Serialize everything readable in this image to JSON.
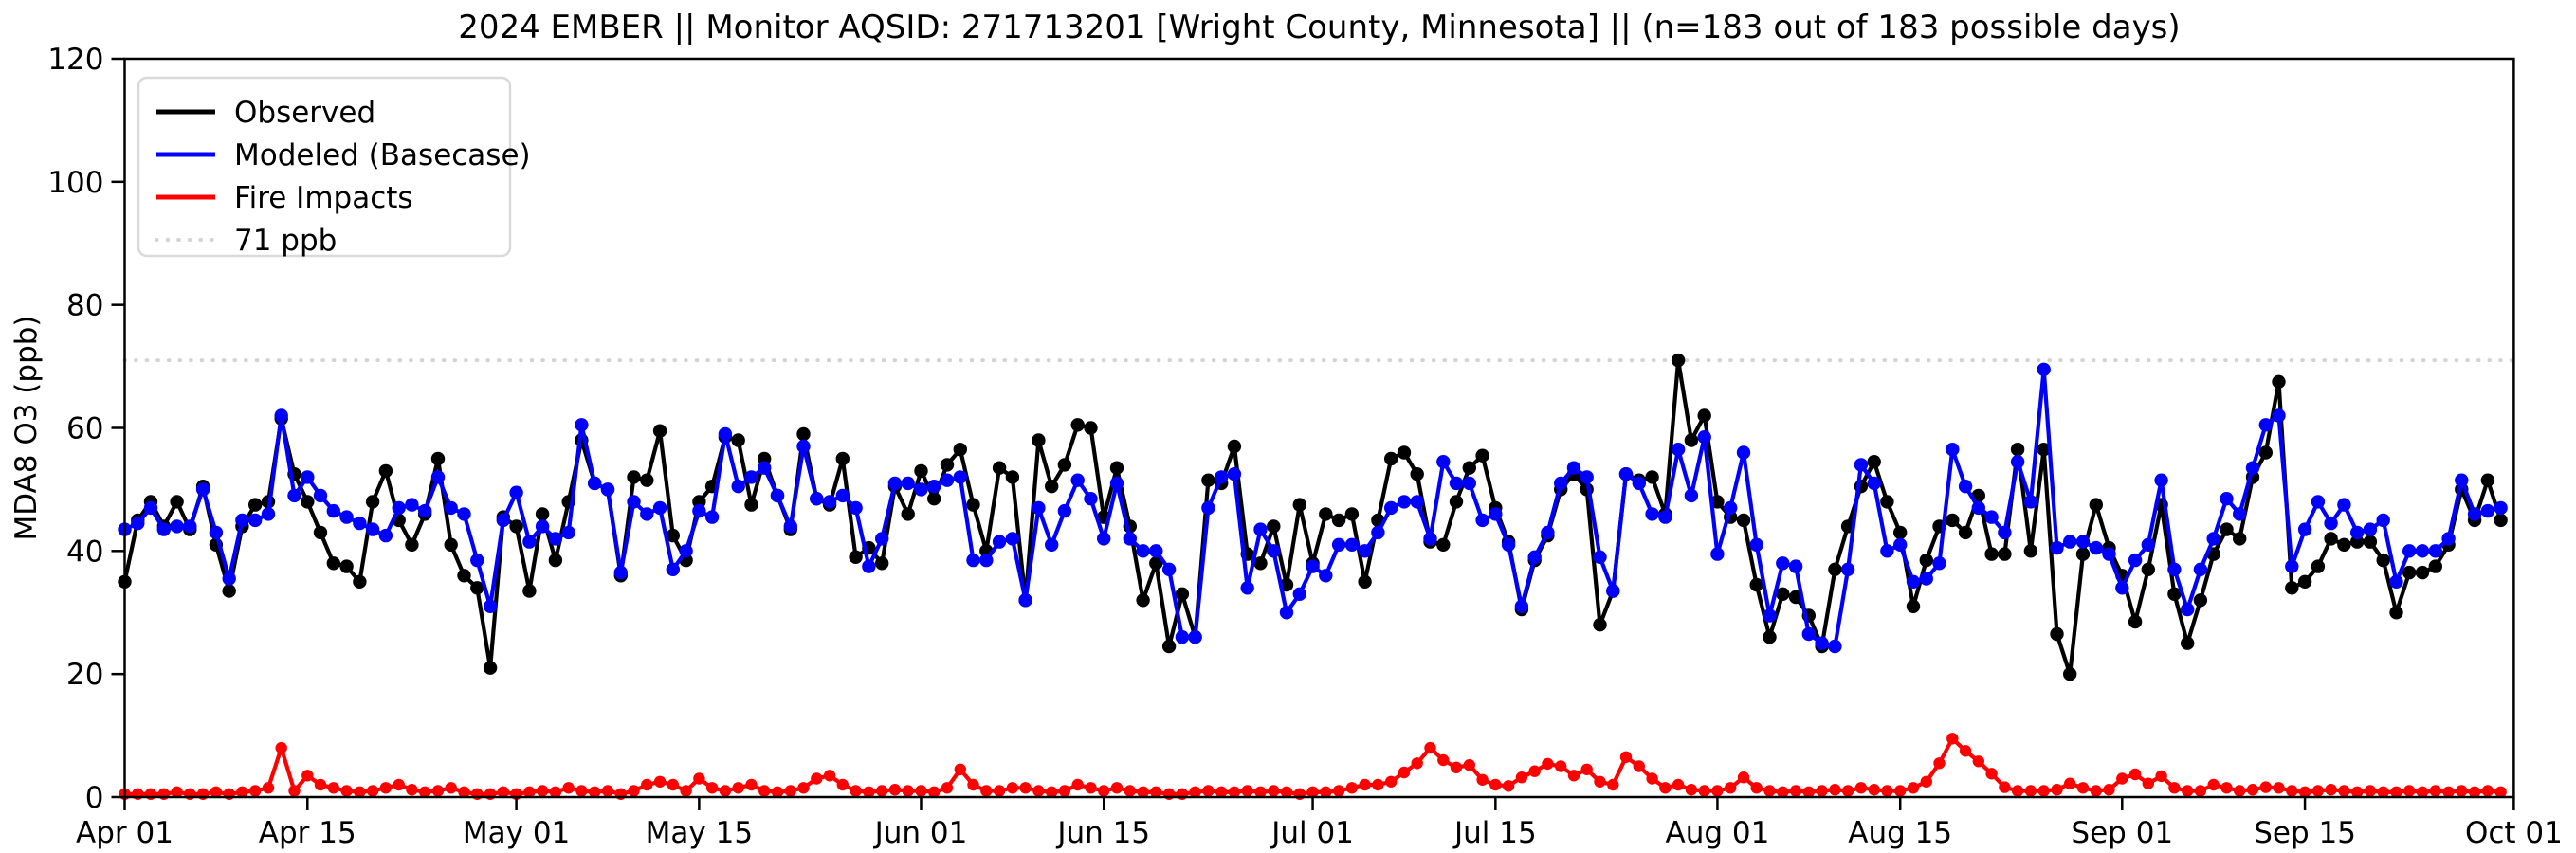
{
  "figure": {
    "title": "2024 EMBER || Monitor AQSID: 271713201 [Wright County, Minnesota] || (n=183 out of 183 possible days)",
    "ylabel": "MDA8 O3 (ppb)",
    "background_color": "#ffffff",
    "observed_color": "#000000",
    "modeled_color": "#0000ff",
    "fire_color": "#ff0000",
    "threshold_color": "#d3d3d3"
  },
  "legend": {
    "items": [
      {
        "label": "Observed",
        "color": "#000000",
        "style": "solid"
      },
      {
        "label": "Modeled (Basecase)",
        "color": "#0000ff",
        "style": "solid"
      },
      {
        "label": "Fire Impacts",
        "color": "#ff0000",
        "style": "solid"
      },
      {
        "label": "71 ppb",
        "color": "#d3d3d3",
        "style": "dotted"
      }
    ]
  },
  "chart_data": {
    "type": "line",
    "title": "2024 EMBER || Monitor AQSID: 271713201 [Wright County, Minnesota] || (n=183 out of 183 possible days)",
    "xlabel": "",
    "ylabel": "MDA8 O3 (ppb)",
    "ylim": [
      0,
      120
    ],
    "yticks": [
      0,
      20,
      40,
      60,
      80,
      100,
      120
    ],
    "grid": false,
    "legend_position": "upper left",
    "x_start_date": "2024-04-01",
    "x_end_date": "2024-10-01",
    "n_days": 183,
    "xticks": [
      {
        "day": 0,
        "label": "Apr 01"
      },
      {
        "day": 14,
        "label": "Apr 15"
      },
      {
        "day": 30,
        "label": "May 01"
      },
      {
        "day": 44,
        "label": "May 15"
      },
      {
        "day": 61,
        "label": "Jun 01"
      },
      {
        "day": 75,
        "label": "Jun 15"
      },
      {
        "day": 91,
        "label": "Jul 01"
      },
      {
        "day": 105,
        "label": "Jul 15"
      },
      {
        "day": 122,
        "label": "Aug 01"
      },
      {
        "day": 136,
        "label": "Aug 15"
      },
      {
        "day": 153,
        "label": "Sep 01"
      },
      {
        "day": 167,
        "label": "Sep 15"
      },
      {
        "day": 183,
        "label": "Oct 01"
      }
    ],
    "threshold_line": {
      "value": 71,
      "label": "71 ppb",
      "color": "#d3d3d3",
      "style": "dotted"
    },
    "series": [
      {
        "name": "Observed",
        "color": "#000000",
        "marker": "circle",
        "values": [
          35,
          45,
          48,
          44,
          48,
          43.5,
          50.5,
          41,
          33.5,
          44,
          47.5,
          48,
          61.5,
          52.5,
          48,
          43,
          38,
          37.5,
          35,
          48,
          53,
          45,
          41,
          46,
          55,
          41,
          36,
          34,
          21,
          45.5,
          44,
          33.5,
          46,
          38.5,
          48,
          58,
          51,
          50,
          36,
          52,
          51.5,
          59.5,
          42.5,
          38.5,
          48,
          50.5,
          58.5,
          58,
          47.5,
          55,
          49,
          43.5,
          59,
          48.5,
          47.5,
          55,
          39,
          40.5,
          38,
          50.5,
          46,
          53,
          48.5,
          54,
          56.5,
          47.5,
          40,
          53.5,
          52,
          32,
          58,
          50.5,
          54,
          60.5,
          60,
          45.5,
          53.5,
          44,
          32,
          38,
          24.5,
          33,
          26,
          51.5,
          51,
          57,
          39.5,
          38,
          44,
          34.5,
          47.5,
          38,
          46,
          45,
          46,
          35,
          45,
          55,
          56,
          52.5,
          41.5,
          41,
          48,
          53.5,
          55.5,
          47,
          41.5,
          30.5,
          38.5,
          42.5,
          50,
          52.5,
          50,
          28,
          33.5,
          52.5,
          51.5,
          52,
          46,
          71,
          58,
          62,
          48,
          45.5,
          45,
          34.5,
          26,
          33,
          32.5,
          29.5,
          24.5,
          37,
          44,
          50.5,
          54.5,
          48,
          43,
          31,
          38.5,
          44,
          45,
          43,
          49,
          39.5,
          39.5,
          56.5,
          40,
          56.5,
          26.5,
          20,
          39.5,
          47.5,
          40.5,
          36,
          28.5,
          37,
          47.5,
          33,
          25,
          32,
          39.5,
          43.5,
          42,
          52,
          56,
          67.5,
          34,
          35,
          37.5,
          42,
          41,
          41.5,
          41.5,
          38.5,
          30,
          36.5,
          36.5,
          37.5,
          41,
          50,
          45,
          51.5,
          45
        ]
      },
      {
        "name": "Modeled (Basecase)",
        "color": "#0000ff",
        "marker": "circle",
        "values": [
          43.5,
          44.5,
          47,
          43.5,
          44,
          44,
          50,
          43,
          35.5,
          45,
          45,
          46,
          62,
          49,
          52,
          49,
          46.5,
          45.5,
          44.5,
          43.5,
          42.5,
          47,
          47.5,
          46.5,
          52,
          47,
          46,
          38.5,
          31,
          45,
          49.5,
          41.5,
          44,
          42,
          43,
          60.5,
          51,
          50,
          36.5,
          48,
          46,
          47,
          37,
          40,
          46.5,
          45.5,
          59,
          50.5,
          52,
          53.5,
          49,
          44,
          57,
          48.5,
          48,
          49,
          47,
          37.5,
          42,
          51,
          51,
          50,
          50.5,
          51.5,
          52,
          38.5,
          38.5,
          41.5,
          42,
          32,
          47,
          41,
          46.5,
          51.5,
          48.5,
          42,
          51,
          42,
          40,
          40,
          37,
          26,
          26,
          47,
          52,
          52.5,
          34,
          43.5,
          40,
          30,
          33,
          37.5,
          36,
          41,
          41,
          40,
          43,
          47,
          48,
          48,
          42,
          54.5,
          51,
          51,
          45,
          46,
          41,
          31,
          39,
          43,
          51,
          53.5,
          52,
          39,
          33.5,
          52.5,
          51,
          46,
          45.5,
          56.5,
          49,
          58.5,
          39.5,
          47,
          56,
          41,
          29.5,
          38,
          37.5,
          26.5,
          25,
          24.5,
          37,
          54,
          51,
          40,
          41,
          35,
          35.5,
          38,
          56.5,
          50.5,
          47,
          45.5,
          43,
          54.5,
          48,
          69.5,
          40.5,
          41.5,
          41.5,
          40.5,
          39.5,
          34,
          38.5,
          41,
          51.5,
          37,
          30.5,
          37,
          42,
          48.5,
          46,
          53.5,
          60.5,
          62,
          37.5,
          43.5,
          48,
          44.5,
          47.5,
          43,
          43.5,
          45,
          35,
          40,
          40,
          40,
          42,
          51.5,
          46,
          46.5,
          47
        ]
      },
      {
        "name": "Fire Impacts",
        "color": "#ff0000",
        "marker": "circle",
        "values": [
          0.5,
          0.5,
          0.5,
          0.5,
          0.8,
          0.5,
          0.5,
          0.8,
          0.5,
          0.8,
          1,
          1.5,
          8,
          1,
          3.5,
          2,
          1.5,
          1,
          0.8,
          1,
          1.5,
          2,
          1.2,
          0.8,
          1,
          1.5,
          0.8,
          0.5,
          0.5,
          0.8,
          0.5,
          0.8,
          1,
          0.8,
          1.5,
          1,
          0.8,
          1,
          0.5,
          1,
          2,
          2.5,
          2,
          1,
          3,
          1.5,
          1,
          1.5,
          2,
          1,
          0.8,
          1,
          1.5,
          3,
          3.5,
          2,
          1,
          0.8,
          1,
          1.2,
          1,
          1,
          0.8,
          1.5,
          4.5,
          2,
          1,
          1,
          1.5,
          1.5,
          1,
          0.8,
          1,
          2,
          1.5,
          1,
          1.5,
          1,
          0.8,
          0.8,
          0.5,
          0.5,
          0.8,
          1,
          0.8,
          0.8,
          1,
          0.8,
          1,
          0.8,
          0.5,
          0.8,
          0.8,
          1,
          1.5,
          2,
          2,
          2.5,
          4,
          5.5,
          8,
          6,
          4.8,
          5.2,
          2.8,
          2,
          1.8,
          3.2,
          4.2,
          5.4,
          5,
          3.5,
          4.5,
          2.5,
          2,
          6.5,
          5,
          3,
          1.5,
          2,
          1.2,
          1,
          1,
          1.5,
          3.2,
          1.5,
          1,
          0.8,
          1,
          0.8,
          1,
          1.2,
          1,
          1.5,
          1.2,
          1,
          1,
          1.5,
          2.5,
          5.5,
          9.5,
          7.5,
          5.8,
          3.8,
          1.6,
          1,
          1,
          1,
          1.2,
          2.2,
          1.5,
          1,
          1.2,
          3,
          3.7,
          2.2,
          3.4,
          1.5,
          1,
          1,
          2,
          1.5,
          1,
          1.2,
          1.6,
          1.5,
          1,
          0.8,
          1,
          1.2,
          1,
          0.8,
          1,
          0.8,
          0.8,
          1,
          0.8,
          1,
          0.8,
          1,
          0.8,
          1,
          0.8
        ]
      }
    ]
  }
}
